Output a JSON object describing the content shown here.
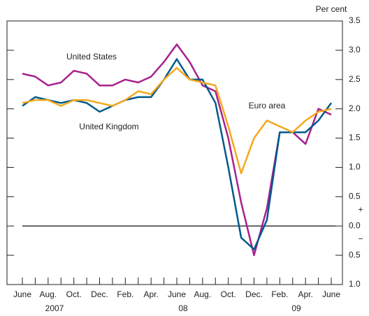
{
  "chart_data": {
    "type": "line",
    "y_unit_label": "Per cent",
    "categories": [
      "June",
      null,
      "Aug.",
      null,
      "Oct.",
      null,
      "Dec.",
      null,
      "Feb.",
      null,
      "Apr.",
      null,
      "June",
      null,
      "Aug.",
      null,
      "Oct.",
      null,
      "Dec.",
      null,
      "Feb.",
      null,
      "Apr.",
      null,
      "June"
    ],
    "year_labels": [
      "2007",
      "08",
      "09"
    ],
    "series": [
      {
        "name": "United States",
        "color": "#a8218e",
        "values": [
          2.6,
          2.55,
          2.4,
          2.45,
          2.65,
          2.6,
          2.4,
          2.4,
          2.5,
          2.45,
          2.55,
          2.8,
          3.1,
          2.8,
          2.4,
          2.3,
          1.5,
          0.4,
          -0.5,
          0.3,
          1.6,
          1.6,
          1.4,
          2.0,
          1.9
        ]
      },
      {
        "name": "United Kingdom",
        "color": "#005a8c",
        "values": [
          2.05,
          2.2,
          2.15,
          2.1,
          2.15,
          2.1,
          1.95,
          2.05,
          2.15,
          2.2,
          2.2,
          2.5,
          2.85,
          2.5,
          2.5,
          2.1,
          1.0,
          -0.2,
          -0.4,
          0.1,
          1.6,
          1.6,
          1.6,
          1.8,
          2.1
        ]
      },
      {
        "name": "Euro area",
        "color": "#f5a81c",
        "values": [
          2.1,
          2.15,
          2.15,
          2.05,
          2.15,
          2.15,
          2.1,
          2.05,
          2.15,
          2.3,
          2.25,
          2.5,
          2.7,
          2.5,
          2.45,
          2.4,
          1.7,
          0.9,
          1.5,
          1.8,
          1.7,
          1.6,
          1.8,
          1.95,
          2.0
        ]
      }
    ],
    "ylim": [
      -1.0,
      3.5
    ],
    "yticks": [
      3.5,
      {
        "value": 3.0,
        "label": "3.0"
      },
      2.5,
      {
        "value": 2.0,
        "label": "2.0"
      },
      1.5,
      {
        "value": 1.0,
        "label": "1.0"
      },
      0.5,
      {
        "value": 0.0,
        "label": "0.0"
      },
      {
        "value": -0.5,
        "label": "0.5"
      },
      {
        "value": -1.0,
        "label": "1.0"
      }
    ],
    "sign_labels": [
      "+",
      "−"
    ]
  }
}
